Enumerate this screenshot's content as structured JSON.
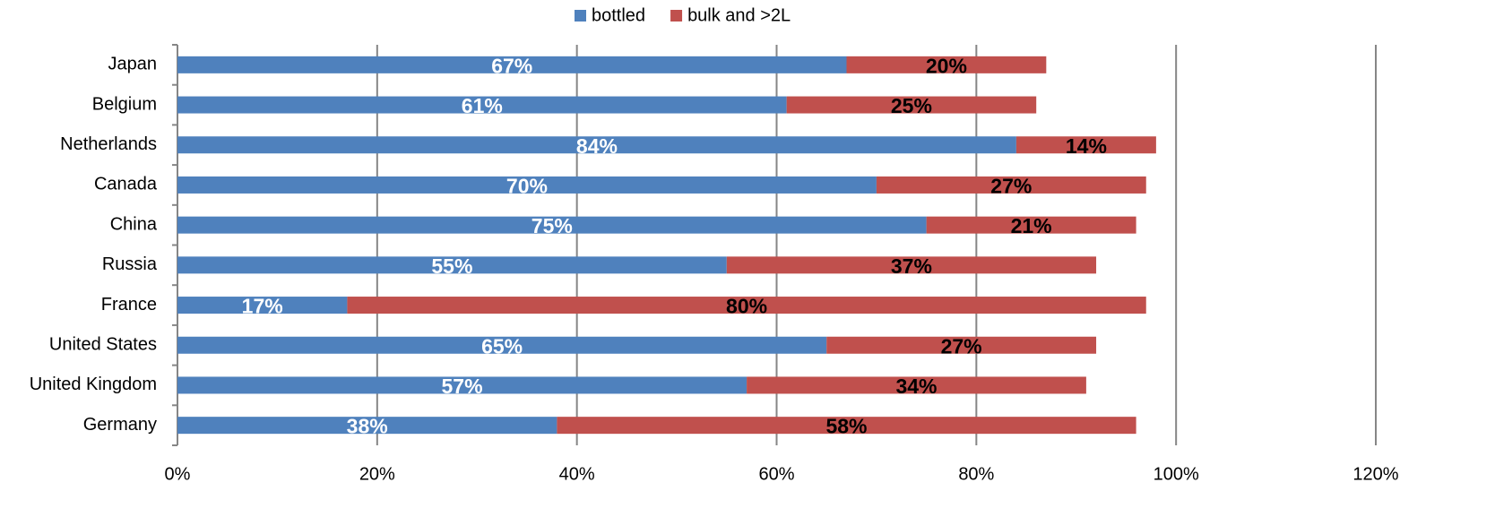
{
  "chart_data": {
    "type": "stacked-bar-horizontal",
    "categories": [
      "Japan",
      "Belgium",
      "Netherlands",
      "Canada",
      "China",
      "Russia",
      "France",
      "United States",
      "United Kingdom",
      "Germany"
    ],
    "series": [
      {
        "name": "bottled",
        "color": "#4f81bd",
        "values": [
          67,
          61,
          84,
          70,
          75,
          55,
          17,
          65,
          57,
          38
        ],
        "value_labels": [
          "67%",
          "61%",
          "84%",
          "70%",
          "75%",
          "55%",
          "17%",
          "65%",
          "57%",
          "38%"
        ],
        "label_color": "#ffffff"
      },
      {
        "name": "bulk and >2L",
        "color": "#c0504d",
        "values": [
          20,
          25,
          14,
          27,
          21,
          37,
          80,
          27,
          34,
          58
        ],
        "value_labels": [
          "20%",
          "25%",
          "14%",
          "27%",
          "21%",
          "37%",
          "80%",
          "27%",
          "34%",
          "58%"
        ],
        "label_color": "#000000"
      }
    ],
    "xlim": [
      0,
      120
    ],
    "xticks": [
      {
        "value": 0,
        "label": "0%"
      },
      {
        "value": 20,
        "label": "20%"
      },
      {
        "value": 40,
        "label": "40%"
      },
      {
        "value": 60,
        "label": "60%"
      },
      {
        "value": 80,
        "label": "80%"
      },
      {
        "value": 100,
        "label": "100%"
      },
      {
        "value": 120,
        "label": "120%"
      }
    ],
    "grid": true,
    "legend": "top"
  }
}
